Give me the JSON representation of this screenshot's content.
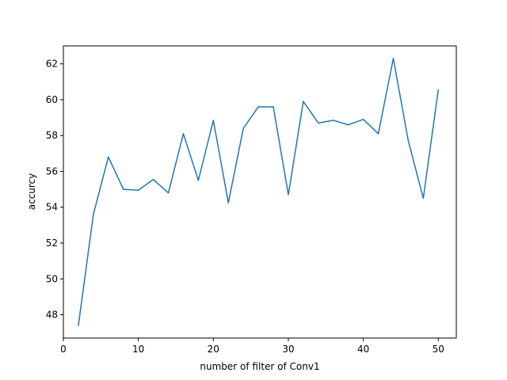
{
  "chart_data": {
    "type": "line",
    "title": "",
    "xlabel": "number of filter of Conv1",
    "ylabel": "accurcy",
    "xlim": [
      0,
      52.4
    ],
    "ylim": [
      46.7,
      63.0
    ],
    "xticks": [
      0,
      10,
      20,
      30,
      40,
      50
    ],
    "yticks": [
      48,
      50,
      52,
      54,
      56,
      58,
      60,
      62
    ],
    "grid": false,
    "legend": "none",
    "series": [
      {
        "color": "#1f77b4",
        "x": [
          2,
          4,
          6,
          8,
          10,
          12,
          14,
          16,
          18,
          20,
          22,
          24,
          26,
          28,
          30,
          32,
          34,
          36,
          38,
          40,
          42,
          44,
          46,
          48,
          50
        ],
        "y": [
          47.4,
          53.6,
          56.8,
          55.0,
          54.95,
          55.55,
          54.8,
          58.1,
          55.5,
          58.85,
          54.25,
          58.4,
          59.6,
          59.6,
          54.7,
          59.9,
          58.7,
          58.85,
          58.6,
          58.9,
          58.1,
          62.3,
          57.7,
          54.5,
          60.55
        ]
      }
    ]
  }
}
